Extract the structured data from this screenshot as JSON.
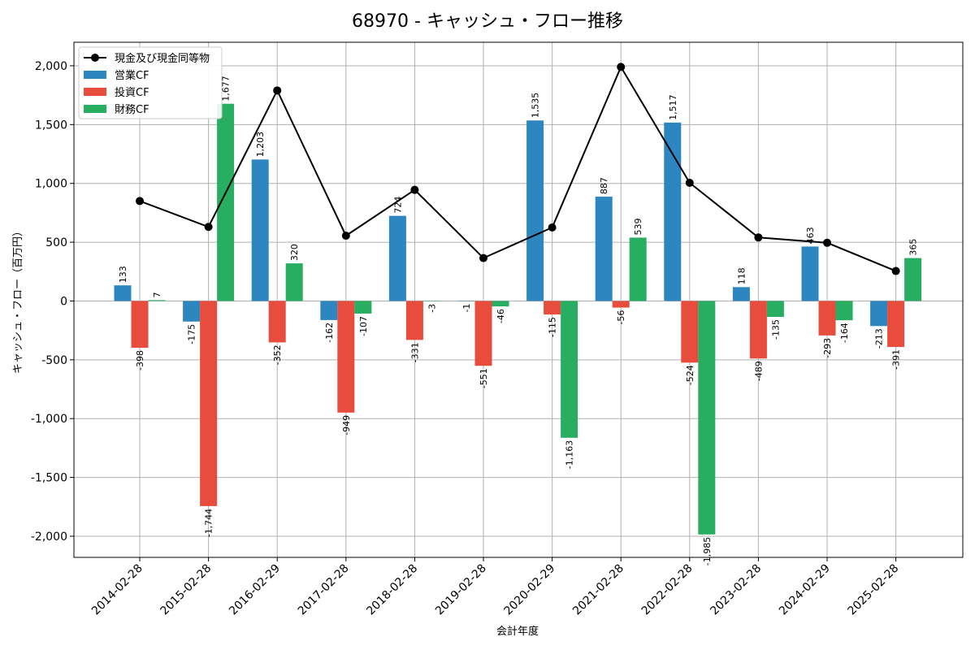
{
  "chart_data": {
    "type": "bar",
    "title": "68970 - キャッシュ・フロー推移",
    "xlabel": "会計年度",
    "ylabel": "キャッシュ・フロー（百万円）",
    "categories": [
      "2014-02-28",
      "2015-02-28",
      "2016-02-29",
      "2017-02-28",
      "2018-02-28",
      "2019-02-28",
      "2020-02-29",
      "2021-02-28",
      "2022-02-28",
      "2023-02-28",
      "2024-02-29",
      "2025-02-28"
    ],
    "ylim": [
      -2180,
      2200
    ],
    "yticks": [
      -2000,
      -1500,
      -1000,
      -500,
      0,
      500,
      1000,
      1500,
      2000
    ],
    "ytick_labels": [
      "-2,000",
      "-1,500",
      "-1,000",
      "-500",
      "0",
      "500",
      "1,000",
      "1,500",
      "2,000"
    ],
    "grid": true,
    "legend_position": "top-left",
    "series": [
      {
        "name": "営業CF",
        "kind": "bar",
        "color": "#2e86c1",
        "values": [
          133,
          -175,
          1203,
          -162,
          724,
          -1,
          1535,
          887,
          1517,
          118,
          463,
          -213
        ],
        "labels": [
          "133",
          "-175",
          "1,203",
          "-162",
          "724",
          "-1",
          "1,535",
          "887",
          "1,517",
          "118",
          "463",
          "-213"
        ]
      },
      {
        "name": "投資CF",
        "kind": "bar",
        "color": "#e74c3c",
        "values": [
          -398,
          -1744,
          -352,
          -949,
          -331,
          -551,
          -115,
          -56,
          -524,
          -489,
          -293,
          -391
        ],
        "labels": [
          "-398",
          "-1,744",
          "-352",
          "-949",
          "-331",
          "-551",
          "-115",
          "-56",
          "-524",
          "-489",
          "-293",
          "-391"
        ]
      },
      {
        "name": "財務CF",
        "kind": "bar",
        "color": "#27ae60",
        "values": [
          7,
          1677,
          320,
          -107,
          -3,
          -46,
          -1163,
          539,
          -1985,
          -135,
          -164,
          365
        ],
        "labels": [
          "7",
          "1,677",
          "320",
          "-107",
          "-3",
          "-46",
          "-1,163",
          "539",
          "-1,985",
          "-135",
          "-164",
          "365"
        ]
      },
      {
        "name": "現金及び現金同等物",
        "kind": "line",
        "color": "#000000",
        "values": [
          850,
          630,
          1790,
          555,
          945,
          365,
          625,
          1990,
          1005,
          540,
          495,
          255
        ]
      }
    ]
  }
}
